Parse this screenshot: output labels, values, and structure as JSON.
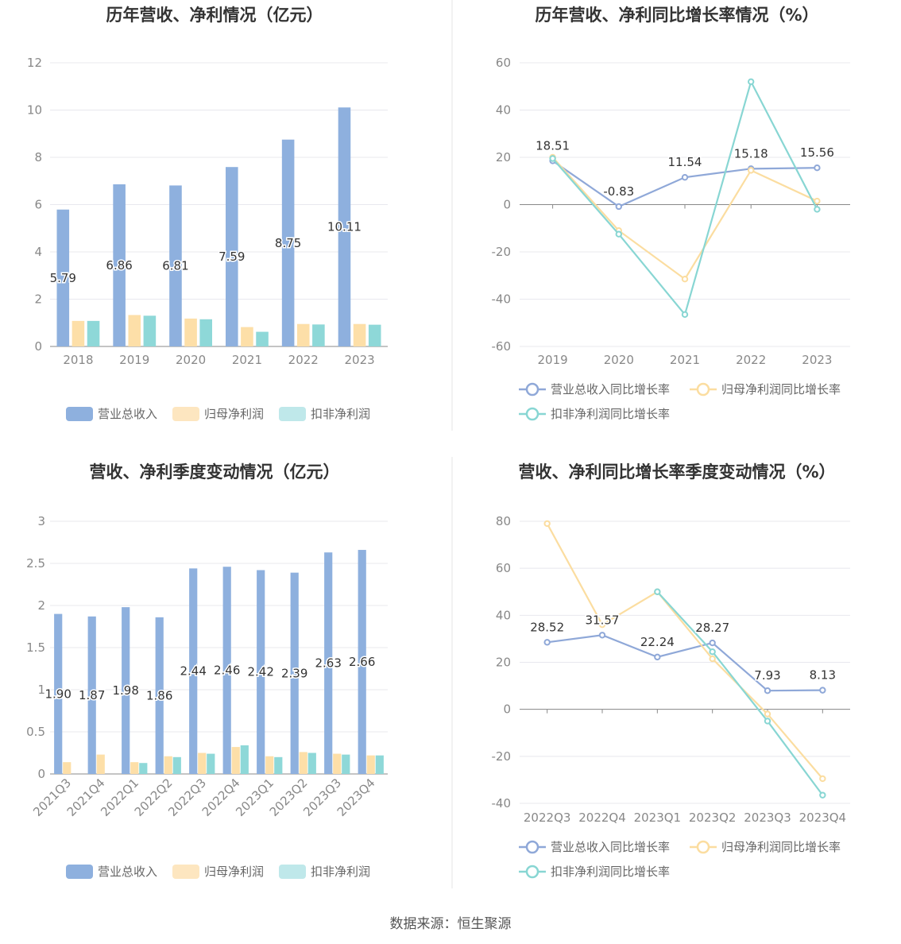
{
  "colors": {
    "revenue": "#8eb0de",
    "parent_profit": "#fddfa8",
    "deducted_profit": "#8ed8d8",
    "revenue_line": "#8fa8d8",
    "parent_line": "#fbdda0",
    "deducted_line": "#88d6d3"
  },
  "source": "数据来源：恒生聚源",
  "chart_data": [
    {
      "type": "bar",
      "title": "历年营收、净利情况（亿元）",
      "categories": [
        "2018",
        "2019",
        "2020",
        "2021",
        "2022",
        "2023"
      ],
      "ylim": [
        0,
        12
      ],
      "yticks": [
        "0",
        "2",
        "4",
        "6",
        "8",
        "10",
        "12"
      ],
      "series": [
        {
          "name": "营业总收入",
          "values": [
            5.79,
            6.86,
            6.81,
            7.59,
            8.75,
            10.11
          ],
          "labels": [
            "5.79",
            "6.86",
            "6.81",
            "7.59",
            "8.75",
            "10.11"
          ]
        },
        {
          "name": "归母净利润",
          "values": [
            1.08,
            1.33,
            1.18,
            0.82,
            0.95,
            0.95
          ]
        },
        {
          "name": "扣非净利润",
          "values": [
            1.08,
            1.3,
            1.15,
            0.62,
            0.93,
            0.92
          ]
        }
      ],
      "grid": true,
      "legend": "bottom"
    },
    {
      "type": "line",
      "title": "历年营收、净利同比增长率情况（%）",
      "categories": [
        "2019",
        "2020",
        "2021",
        "2022",
        "2023"
      ],
      "ylim": [
        -60,
        60
      ],
      "yticks": [
        "-60",
        "-40",
        "-20",
        "0",
        "20",
        "40",
        "60"
      ],
      "series": [
        {
          "name": "营业总收入同比增长率",
          "values": [
            18.51,
            -0.83,
            11.54,
            15.18,
            15.56
          ],
          "labels": [
            "18.51",
            "-0.83",
            "11.54",
            "15.18",
            "15.56"
          ]
        },
        {
          "name": "归母净利润同比增长率",
          "values": [
            20.0,
            -11.0,
            -31.5,
            14.5,
            1.5
          ]
        },
        {
          "name": "扣非净利润同比增长率",
          "values": [
            19.5,
            -12.5,
            -46.5,
            52.0,
            -2.0
          ]
        }
      ],
      "grid": true,
      "legend": "bottom"
    },
    {
      "type": "bar",
      "title": "营收、净利季度变动情况（亿元）",
      "categories": [
        "2021Q3",
        "2021Q4",
        "2022Q1",
        "2022Q2",
        "2022Q3",
        "2022Q4",
        "2023Q1",
        "2023Q2",
        "2023Q3",
        "2023Q4"
      ],
      "ylim": [
        0,
        3
      ],
      "yticks": [
        "0",
        "0.5",
        "1",
        "1.5",
        "2",
        "2.5",
        "3"
      ],
      "series": [
        {
          "name": "营业总收入",
          "values": [
            1.9,
            1.87,
            1.98,
            1.86,
            2.44,
            2.46,
            2.42,
            2.39,
            2.63,
            2.66
          ],
          "labels": [
            "1.90",
            "1.87",
            "1.98",
            "1.86",
            "2.44",
            "2.46",
            "2.42",
            "2.39",
            "2.63",
            "2.66"
          ]
        },
        {
          "name": "归母净利润",
          "values": [
            0.14,
            0.23,
            0.14,
            0.21,
            0.25,
            0.32,
            0.21,
            0.26,
            0.24,
            0.22
          ]
        },
        {
          "name": "扣非净利润",
          "values": [
            0.0,
            0.0,
            0.13,
            0.2,
            0.24,
            0.34,
            0.2,
            0.25,
            0.23,
            0.22
          ]
        }
      ],
      "grid": true,
      "legend": "bottom"
    },
    {
      "type": "line",
      "title": "营收、净利同比增长率季度变动情况（%）",
      "categories": [
        "2022Q3",
        "2022Q4",
        "2023Q1",
        "2023Q2",
        "2023Q3",
        "2023Q4"
      ],
      "ylim": [
        -40,
        80
      ],
      "yticks": [
        "-40",
        "-20",
        "0",
        "20",
        "40",
        "60",
        "80"
      ],
      "series": [
        {
          "name": "营业总收入同比增长率",
          "values": [
            28.52,
            31.57,
            22.24,
            28.27,
            7.93,
            8.13
          ],
          "labels": [
            "28.52",
            "31.57",
            "22.24",
            "28.27",
            "7.93",
            "8.13"
          ]
        },
        {
          "name": "归母净利润同比增长率",
          "values": [
            79.0,
            36.0,
            50.0,
            21.5,
            -2.0,
            -29.5
          ]
        },
        {
          "name": "扣非净利润同比增长率",
          "values": [
            null,
            null,
            50.0,
            24.5,
            -5.0,
            -36.5
          ]
        }
      ],
      "grid": true,
      "legend": "bottom"
    }
  ]
}
